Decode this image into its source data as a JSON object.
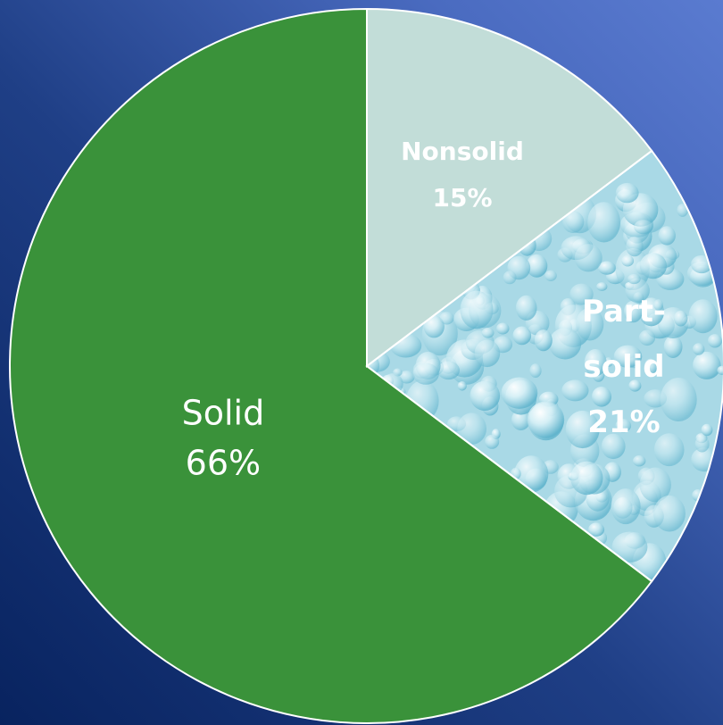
{
  "chart_data": {
    "type": "pie",
    "title": "",
    "slices": [
      {
        "name": "Nonsolid",
        "value": 15,
        "value_label": "15%",
        "color": "#c2ddd8",
        "label_lines": [
          "Nonsolid"
        ]
      },
      {
        "name": "Part-solid",
        "value": 21,
        "value_label": "21%",
        "color": "#a9d9e6",
        "fill_style": "water-droplet texture",
        "label_lines": [
          "Part-",
          "solid"
        ]
      },
      {
        "name": "Solid",
        "value": 66,
        "value_label": "66%",
        "color": "#3a923a",
        "label_lines": [
          "Solid"
        ]
      }
    ]
  }
}
